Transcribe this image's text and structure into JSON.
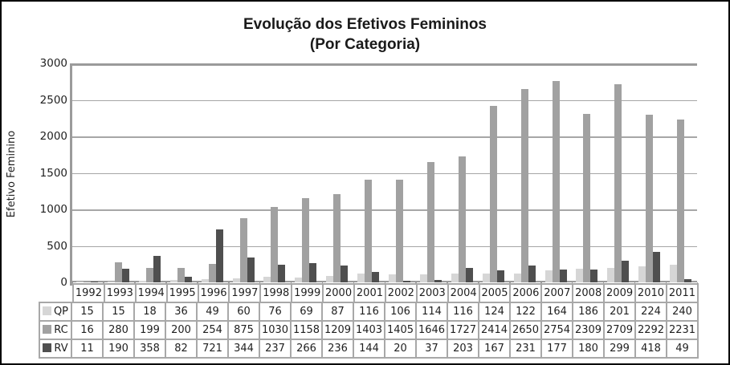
{
  "title": {
    "line1": "Evolução dos Efetivos Femininos",
    "line2": "(Por Categoria)"
  },
  "chart_data": {
    "type": "bar",
    "title": "Evolução dos Efetivos Femininos (Por Categoria)",
    "xlabel": "",
    "ylabel": "Efetivo Feminino",
    "ylim": [
      0,
      3000
    ],
    "y_ticks": [
      0,
      500,
      1000,
      1500,
      2000,
      2500,
      3000
    ],
    "grid": true,
    "legend_position": "table-left",
    "categories": [
      "1992",
      "1993",
      "1994",
      "1995",
      "1996",
      "1997",
      "1998",
      "1999",
      "2000",
      "2001",
      "2002",
      "2003",
      "2004",
      "2005",
      "2006",
      "2007",
      "2008",
      "2009",
      "2010",
      "2011"
    ],
    "series": [
      {
        "name": "QP",
        "color": "#d6d6d6",
        "values": [
          15,
          15,
          18,
          36,
          49,
          60,
          76,
          69,
          87,
          116,
          106,
          114,
          116,
          124,
          122,
          164,
          186,
          201,
          224,
          240
        ]
      },
      {
        "name": "RC",
        "color": "#a1a1a1",
        "values": [
          16,
          280,
          199,
          200,
          254,
          875,
          1030,
          1158,
          1209,
          1403,
          1405,
          1646,
          1727,
          2414,
          2650,
          2754,
          2309,
          2709,
          2292,
          2231
        ]
      },
      {
        "name": "RV",
        "color": "#4f4f4f",
        "values": [
          11,
          190,
          358,
          82,
          721,
          344,
          237,
          266,
          236,
          144,
          20,
          37,
          203,
          167,
          231,
          177,
          180,
          299,
          418,
          49
        ]
      }
    ]
  },
  "colors": {
    "gridline": "#a6a6a6",
    "axis": "#9b9b9b",
    "table_border": "#a8a8a8",
    "text": "#1f1f1f",
    "frame_border": "#000000",
    "background": "#ffffff"
  }
}
